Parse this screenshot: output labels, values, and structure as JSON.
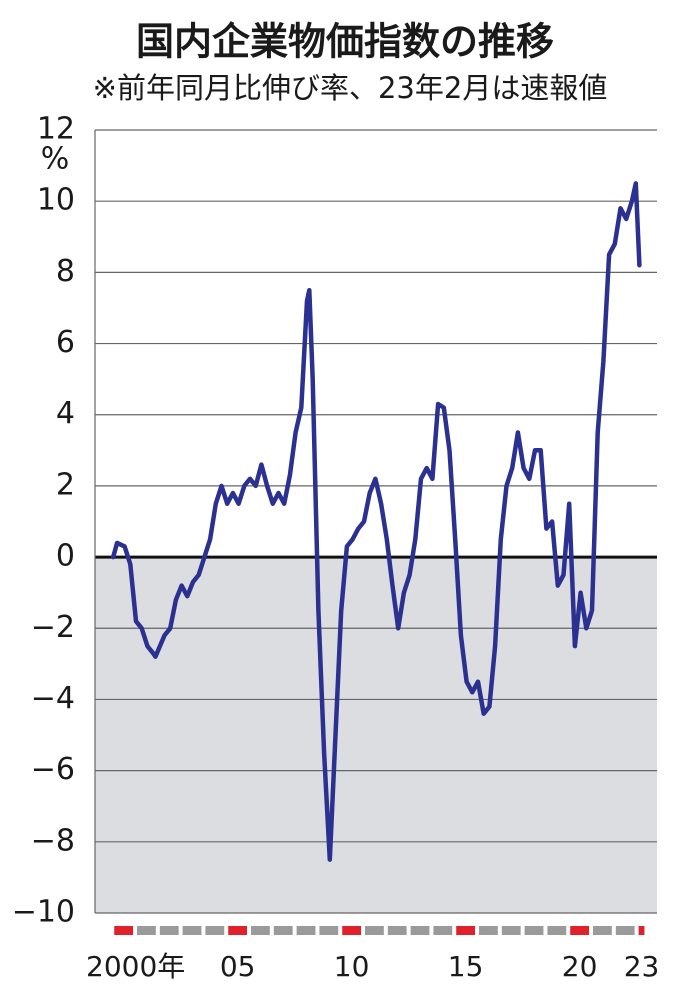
{
  "chart_data": {
    "type": "line",
    "title": "国内企業物価指数の推移",
    "subtitle": "※前年同月比伸び率、23年2月は速報値",
    "y_unit": "%",
    "color": "#2b3191",
    "x": [
      2000.0,
      2000.17,
      2000.5,
      2000.75,
      2001.0,
      2001.25,
      2001.5,
      2001.75,
      2001.85,
      2002.25,
      2002.5,
      2002.75,
      2003.0,
      2003.25,
      2003.5,
      2003.75,
      2004.0,
      2004.25,
      2004.5,
      2004.75,
      2005.0,
      2005.25,
      2005.5,
      2005.75,
      2006.0,
      2006.25,
      2006.5,
      2006.75,
      2007.0,
      2007.25,
      2007.5,
      2007.75,
      2008.0,
      2008.25,
      2008.5,
      2008.6,
      2008.75,
      2009.0,
      2009.25,
      2009.5,
      2009.75,
      2010.0,
      2010.25,
      2010.5,
      2010.75,
      2011.0,
      2011.25,
      2011.5,
      2011.75,
      2012.0,
      2012.25,
      2012.5,
      2012.75,
      2013.0,
      2013.25,
      2013.5,
      2013.75,
      2014.0,
      2014.25,
      2014.5,
      2014.75,
      2015.0,
      2015.25,
      2015.5,
      2015.75,
      2016.0,
      2016.25,
      2016.5,
      2016.75,
      2017.0,
      2017.25,
      2017.5,
      2017.75,
      2018.0,
      2018.25,
      2018.5,
      2018.75,
      2019.0,
      2019.25,
      2019.5,
      2019.75,
      2020.0,
      2020.25,
      2020.5,
      2020.75,
      2021.0,
      2021.25,
      2021.5,
      2021.75,
      2022.0,
      2022.25,
      2022.5,
      2022.75,
      2022.92,
      2023.08
    ],
    "values": [
      0,
      0.4,
      0.3,
      -0.2,
      -1.8,
      -2.0,
      -2.5,
      -2.7,
      -2.8,
      -2.2,
      -2.0,
      -1.2,
      -0.8,
      -1.1,
      -0.7,
      -0.5,
      0,
      0.5,
      1.5,
      2.0,
      1.5,
      1.8,
      1.5,
      2.0,
      2.2,
      2.0,
      2.6,
      2.0,
      1.5,
      1.8,
      1.5,
      2.3,
      3.5,
      4.2,
      7.2,
      7.5,
      5.0,
      -1.5,
      -5.5,
      -8.5,
      -5.0,
      -1.5,
      0.3,
      0.5,
      0.8,
      1.0,
      1.8,
      2.2,
      1.5,
      0.5,
      -0.8,
      -2.0,
      -1.0,
      -0.5,
      0.5,
      2.2,
      2.5,
      2.2,
      4.3,
      4.2,
      3.0,
      0.5,
      -2.2,
      -3.5,
      -3.8,
      -3.5,
      -4.4,
      -4.2,
      -2.5,
      0.5,
      2.0,
      2.5,
      3.5,
      2.5,
      2.2,
      3.0,
      3.0,
      0.8,
      1.0,
      -0.8,
      -0.5,
      1.5,
      -2.5,
      -1.0,
      -2.0,
      -1.5,
      3.5,
      5.5,
      8.5,
      8.8,
      9.8,
      9.5,
      10.0,
      10.5,
      8.2
    ],
    "xlim": [
      1999.2,
      2023.85
    ],
    "xticks": [
      {
        "value": 2000,
        "label": "2000年"
      },
      {
        "value": 2005,
        "label": "05"
      },
      {
        "value": 2010,
        "label": "10"
      },
      {
        "value": 2015,
        "label": "15"
      },
      {
        "value": 2020,
        "label": "20"
      },
      {
        "value": 2023,
        "label": "23"
      }
    ],
    "ylim": [
      -10,
      12
    ],
    "yticks": [
      {
        "value": -10,
        "label": "−10"
      },
      {
        "value": -8,
        "label": "−8"
      },
      {
        "value": -6,
        "label": "−6"
      },
      {
        "value": -4,
        "label": "−4"
      },
      {
        "value": -2,
        "label": "−2"
      },
      0,
      2,
      4,
      6,
      8,
      10,
      12
    ],
    "grid": true
  }
}
